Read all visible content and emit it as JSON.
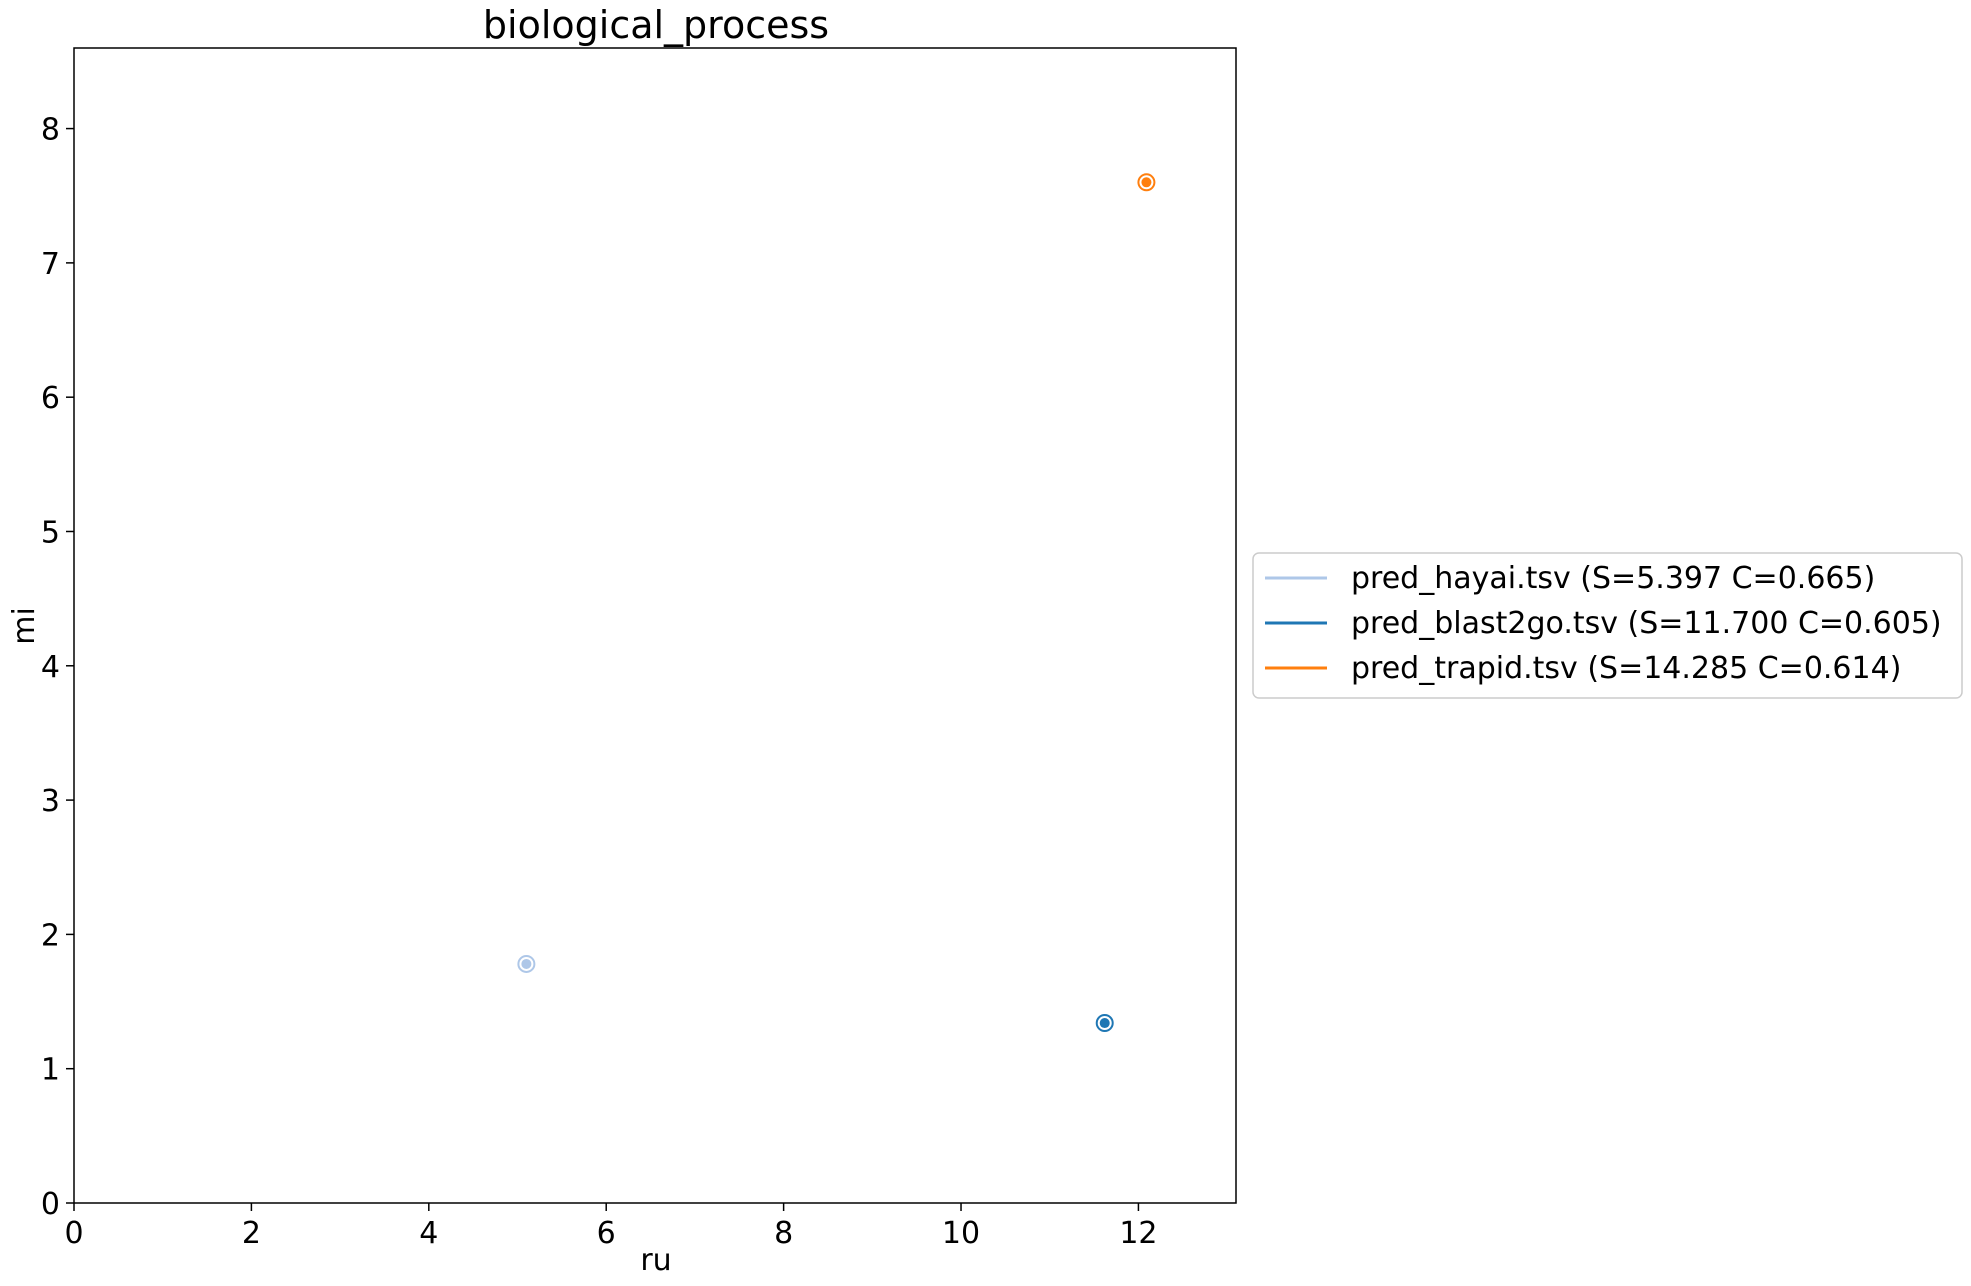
{
  "chart_data": {
    "type": "scatter",
    "title": "biological_process",
    "xlabel": "ru",
    "ylabel": "mi",
    "xlim": [
      0,
      13.1
    ],
    "ylim": [
      0,
      8.6
    ],
    "x_ticks": [
      "0",
      "2",
      "4",
      "6",
      "8",
      "10",
      "12"
    ],
    "y_ticks": [
      "0",
      "1",
      "2",
      "3",
      "4",
      "5",
      "6",
      "7",
      "8"
    ],
    "grid": false,
    "legend_position": "center-right outside",
    "series": [
      {
        "name": "pred_hayai.tsv (S=5.397 C=0.665)",
        "color": "#aec7e8",
        "x": 5.1,
        "y": 1.78
      },
      {
        "name": "pred_blast2go.tsv (S=11.700 C=0.605)",
        "color": "#1f77b4",
        "x": 11.62,
        "y": 1.34
      },
      {
        "name": "pred_trapid.tsv (S=14.285 C=0.614)",
        "color": "#ff7f0e",
        "x": 12.09,
        "y": 7.6
      }
    ]
  }
}
